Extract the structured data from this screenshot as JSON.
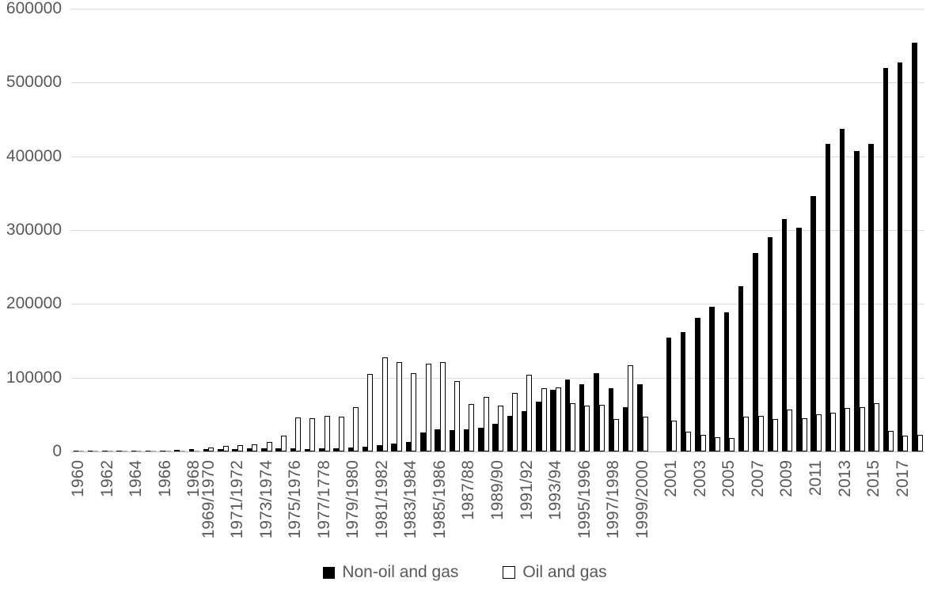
{
  "chart_data": {
    "type": "bar",
    "title": "",
    "xlabel": "",
    "ylabel": "",
    "grid": true,
    "legend_position": "bottom",
    "y_axis": {
      "min": 0,
      "max": 600000,
      "tick_step": 100000,
      "tick_labels": [
        "0",
        "100000",
        "200000",
        "300000",
        "400000",
        "500000",
        "600000"
      ]
    },
    "categories": [
      "1960",
      "",
      "1962",
      "",
      "1964",
      "",
      "1966",
      "",
      "1968",
      "1969/1970",
      "",
      "1971/1972",
      "",
      "1973/1974",
      "",
      "1975/1976",
      "",
      "1977/1778",
      "",
      "1979/1980",
      "",
      "1981/1982",
      "",
      "1983/1984",
      "",
      "1985/1986",
      "",
      "1987/88",
      "",
      "1989/90",
      "",
      "1991/92",
      "",
      "1993/94",
      "",
      "1995/1996",
      "",
      "1997/1998",
      "",
      "1999/2000",
      "",
      "2001",
      "",
      "2003",
      "",
      "2005",
      "",
      "2007",
      "",
      "2009",
      "",
      "2011",
      "",
      "2013",
      "",
      "2015",
      "",
      "2017",
      ""
    ],
    "series": [
      {
        "name": "Non-oil and gas",
        "fill": "#000000",
        "values": [
          500,
          600,
          700,
          800,
          900,
          900,
          1200,
          2500,
          3500,
          2800,
          3000,
          3200,
          3800,
          4200,
          4800,
          4200,
          3200,
          4000,
          4200,
          5200,
          6800,
          8800,
          11000,
          13000,
          26000,
          30000,
          29000,
          30000,
          32000,
          38000,
          48000,
          55000,
          67000,
          84000,
          98000,
          91000,
          106000,
          86000,
          60000,
          91000,
          null,
          154000,
          162000,
          181000,
          196000,
          189000,
          224000,
          269000,
          290000,
          315000,
          303000,
          346000,
          417000,
          437000,
          407000,
          417000,
          520000,
          527000,
          554000
        ]
      },
      {
        "name": "Oil and gas",
        "fill": "#ffffff",
        "outline": "#000000",
        "values": [
          200,
          200,
          250,
          250,
          300,
          300,
          400,
          800,
          1200,
          5400,
          7500,
          8500,
          9500,
          13000,
          21500,
          46000,
          45000,
          48000,
          47000,
          60000,
          105000,
          127000,
          121000,
          106000,
          119000,
          121000,
          95000,
          64000,
          74000,
          62000,
          79000,
          104000,
          86000,
          87000,
          65000,
          62000,
          63000,
          44000,
          117000,
          47000,
          null,
          42000,
          27000,
          22000,
          19000,
          18000,
          47000,
          48000,
          44000,
          57000,
          45000,
          50000,
          52000,
          59000,
          60000,
          65000,
          28000,
          21000,
          23000
        ]
      }
    ],
    "colors": {
      "axis_text": "#595959",
      "gridline": "#d9d9d9",
      "axis_line": "#bfbfbf"
    }
  }
}
